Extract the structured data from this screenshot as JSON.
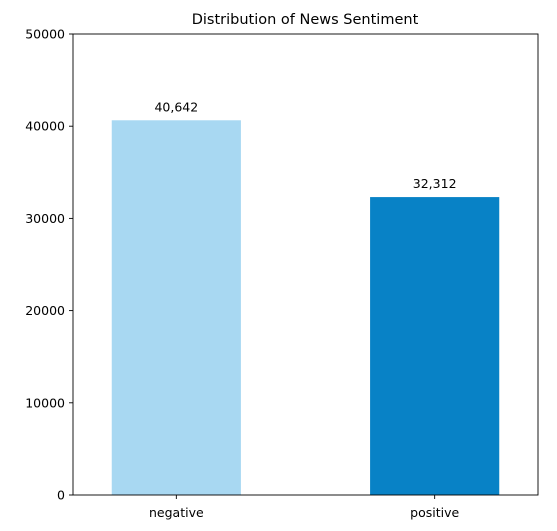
{
  "chart_data": {
    "type": "bar",
    "title": "Distribution of News Sentiment",
    "xlabel": "",
    "ylabel": "",
    "categories": [
      "negative",
      "positive"
    ],
    "values": [
      40642,
      32312
    ],
    "data_labels": [
      "40,642",
      "32,312"
    ],
    "colors": [
      "#a8d8f2",
      "#0882c6"
    ],
    "ylim": [
      0,
      50000
    ],
    "yticks": [
      0,
      10000,
      20000,
      30000,
      40000,
      50000
    ],
    "ytick_labels": [
      "0",
      "10000",
      "20000",
      "30000",
      "40000",
      "50000"
    ],
    "grid": false,
    "legend": "none"
  }
}
